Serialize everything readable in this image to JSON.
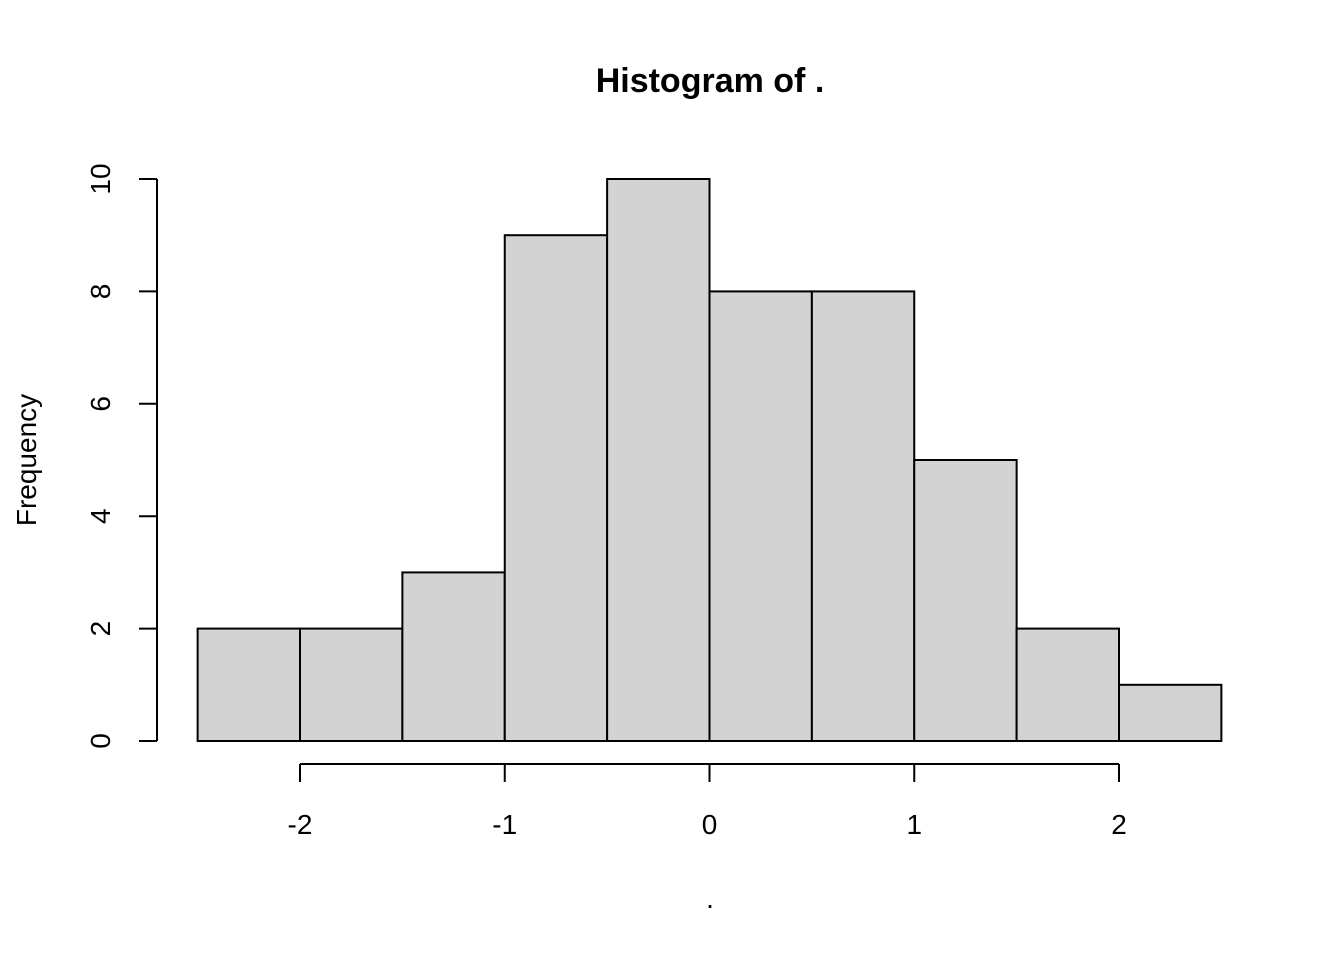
{
  "chart_data": {
    "type": "bar",
    "title": "Histogram of .",
    "xlabel": ".",
    "ylabel": "Frequency",
    "bins": [
      {
        "x0": -2.5,
        "x1": -2.0,
        "count": 2
      },
      {
        "x0": -2.0,
        "x1": -1.5,
        "count": 2
      },
      {
        "x0": -1.5,
        "x1": -1.0,
        "count": 3
      },
      {
        "x0": -1.0,
        "x1": -0.5,
        "count": 9
      },
      {
        "x0": -0.5,
        "x1": 0.0,
        "count": 10
      },
      {
        "x0": 0.0,
        "x1": 0.5,
        "count": 8
      },
      {
        "x0": 0.5,
        "x1": 1.0,
        "count": 8
      },
      {
        "x0": 1.0,
        "x1": 1.5,
        "count": 5
      },
      {
        "x0": 1.5,
        "x1": 2.0,
        "count": 2
      },
      {
        "x0": 2.0,
        "x1": 2.5,
        "count": 1
      }
    ],
    "xlim": [
      -2.5,
      2.5
    ],
    "ylim": [
      0,
      10
    ],
    "xticks": [
      -2,
      -1,
      0,
      1,
      2
    ],
    "xtick_labels": [
      "-2",
      "-1",
      "0",
      "1",
      "2"
    ],
    "yticks": [
      0,
      2,
      4,
      6,
      8,
      10
    ],
    "ytick_labels": [
      "0",
      "2",
      "4",
      "6",
      "8",
      "10"
    ],
    "bar_color": "#d3d3d3",
    "edge_color": "#000000",
    "grid": false,
    "legend": "none"
  }
}
